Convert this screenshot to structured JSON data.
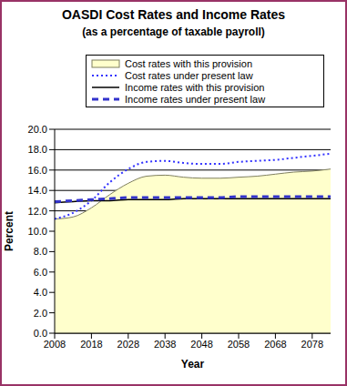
{
  "chart_data": {
    "type": "line",
    "title": "OASDI Cost Rates and Income Rates",
    "subtitle": "(as a percentage of taxable payroll)",
    "x_label": "Year",
    "y_label": "Percent",
    "x": [
      2008,
      2013,
      2018,
      2023,
      2028,
      2033,
      2038,
      2043,
      2048,
      2053,
      2058,
      2063,
      2068,
      2073,
      2078,
      2083
    ],
    "series": [
      {
        "name": "Cost rates with this provision",
        "type": "area",
        "color": "#ffffcc",
        "line_style": "solid",
        "values": [
          11.2,
          11.4,
          12.3,
          13.6,
          14.7,
          15.4,
          15.5,
          15.3,
          15.2,
          15.2,
          15.3,
          15.4,
          15.6,
          15.8,
          15.9,
          16.1
        ]
      },
      {
        "name": "Cost rates under present law",
        "type": "line",
        "color": "#3333ff",
        "line_style": "dotted",
        "values": [
          11.2,
          11.8,
          13.0,
          14.8,
          16.1,
          16.8,
          16.9,
          16.7,
          16.6,
          16.6,
          16.8,
          16.9,
          17.0,
          17.2,
          17.4,
          17.6
        ]
      },
      {
        "name": "Income rates with this provision",
        "type": "line",
        "color": "#000000",
        "line_style": "solid",
        "values": [
          12.8,
          12.9,
          13.0,
          13.0,
          13.1,
          13.1,
          13.1,
          13.2,
          13.2,
          13.2,
          13.2,
          13.2,
          13.2,
          13.2,
          13.2,
          13.2
        ]
      },
      {
        "name": "Income rates under present law",
        "type": "line",
        "color": "#3333cc",
        "line_style": "dashed",
        "values": [
          12.9,
          13.0,
          13.1,
          13.2,
          13.3,
          13.3,
          13.3,
          13.3,
          13.3,
          13.3,
          13.4,
          13.4,
          13.4,
          13.4,
          13.4,
          13.4
        ]
      }
    ],
    "xlim": [
      2008,
      2083
    ],
    "xticks": [
      2008,
      2018,
      2028,
      2038,
      2048,
      2058,
      2068,
      2078
    ],
    "ylim": [
      0,
      20
    ],
    "yticks": [
      {
        "value": 0,
        "label": "0.0"
      },
      {
        "value": 2,
        "label": "2.0"
      },
      {
        "value": 4,
        "label": "4.0"
      },
      {
        "value": 6,
        "label": "6.0"
      },
      {
        "value": 8,
        "label": "8.0"
      },
      {
        "value": 10,
        "label": "10.0"
      },
      {
        "value": 12,
        "label": "12.0"
      },
      {
        "value": 14,
        "label": "14.0"
      },
      {
        "value": 16,
        "label": "16.0"
      },
      {
        "value": 18,
        "label": "18.0"
      },
      {
        "value": 20,
        "label": "20.0"
      }
    ],
    "grid": true,
    "legend": "top"
  }
}
